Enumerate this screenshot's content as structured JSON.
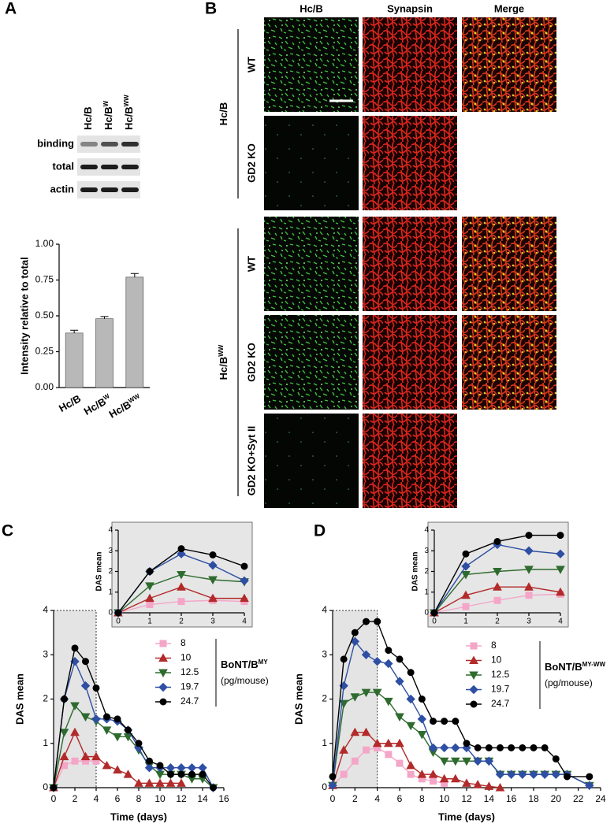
{
  "panel_labels": [
    "A",
    "B",
    "C",
    "D"
  ],
  "blot": {
    "lanes": [
      [
        "Hc/B"
      ],
      [
        "Hc/B",
        "W"
      ],
      [
        "Hc/B",
        "WW"
      ]
    ],
    "rows": [
      "binding",
      "total",
      "actin"
    ]
  },
  "panel_b": {
    "columns": [
      "Hc/B",
      "Synapsin",
      "Merge"
    ],
    "groups": [
      {
        "label": [
          "Hc/B"
        ],
        "rows": [
          "WT",
          "GD2 KO"
        ]
      },
      {
        "label": [
          "Hc/B",
          "WW"
        ],
        "rows": [
          "WT",
          "GD2 KO",
          "GD2 KO+Syt II"
        ]
      }
    ]
  },
  "chart_data": [
    {
      "type": "bar",
      "categories": [
        [
          "Hc/B"
        ],
        [
          "Hc/B",
          "W"
        ],
        [
          "Hc/B",
          "WW"
        ]
      ],
      "values": [
        0.38,
        0.48,
        0.77
      ],
      "errors": [
        0.02,
        0.015,
        0.025
      ],
      "color": "#b8b8b8",
      "y_label": "Intensity relative to total",
      "ylim": [
        0,
        1
      ],
      "yticks": [
        {
          "value": 0,
          "label": "0.00"
        },
        {
          "value": 0.25,
          "label": "0.25"
        },
        {
          "value": 0.5,
          "label": "0.50"
        },
        {
          "value": 0.75,
          "label": "0.75"
        },
        {
          "value": 1,
          "label": "1.00"
        }
      ]
    },
    {
      "type": "line",
      "x_label": "Time (days)",
      "y_label": "DAS mean",
      "x": [
        0,
        1,
        2,
        3,
        4,
        5,
        6,
        7,
        8,
        9,
        10,
        11,
        12,
        13,
        14,
        15
      ],
      "xlim": [
        0,
        16
      ],
      "xticks": [
        0,
        2,
        4,
        6,
        8,
        10,
        12,
        14,
        16
      ],
      "ylim": [
        0,
        4
      ],
      "yticks": [
        0,
        1,
        2,
        3,
        4
      ],
      "shade_x": [
        0,
        4
      ],
      "legend_title": [
        "BoNT/B",
        "MY"
      ],
      "legend_unit": "(pg/mouse)",
      "series": [
        {
          "name": "8",
          "color": "#f4a6c8",
          "marker": "square",
          "values": [
            0,
            0.5,
            0.6,
            0.6,
            0.6,
            null,
            null,
            null,
            null,
            null,
            null,
            null,
            null,
            null,
            null,
            null
          ]
        },
        {
          "name": "10",
          "color": "#b22a2a",
          "marker": "triangle-up",
          "values": [
            0,
            0.7,
            1.25,
            0.7,
            0.7,
            0.5,
            0.4,
            0.3,
            0.1,
            0.1,
            0.1,
            0.1,
            0.1,
            null,
            null,
            null
          ]
        },
        {
          "name": "12.5",
          "color": "#2e6b2e",
          "marker": "triangle-down",
          "values": [
            0,
            1.25,
            1.85,
            1.6,
            1.5,
            1.3,
            1.15,
            1.15,
            0.85,
            0.5,
            0.3,
            0.3,
            0.3,
            0.2,
            0.2,
            0
          ]
        },
        {
          "name": "19.7",
          "color": "#2e4fa3",
          "marker": "diamond",
          "values": [
            0,
            2.0,
            2.85,
            2.3,
            1.55,
            1.55,
            1.5,
            1.3,
            0.9,
            0.45,
            0.45,
            0.45,
            0.45,
            0.45,
            0.45,
            0
          ]
        },
        {
          "name": "24.7",
          "color": "#000000",
          "marker": "circle",
          "values": [
            0,
            2.0,
            3.15,
            2.85,
            2.25,
            1.6,
            1.55,
            1.3,
            1.0,
            0.6,
            0.5,
            0.3,
            0.3,
            0.3,
            0.3,
            0
          ]
        }
      ]
    },
    {
      "type": "line",
      "y_label": "DAS mean",
      "x": [
        0,
        1,
        2,
        3,
        4
      ],
      "xlim": [
        0,
        4
      ],
      "xticks": [
        0,
        1,
        2,
        3,
        4
      ],
      "ylim": [
        0,
        4
      ],
      "yticks": [
        0,
        1,
        2,
        3,
        4
      ],
      "series": [
        {
          "color": "#f4a6c8",
          "values": [
            0,
            0.4,
            0.55,
            0.6,
            0.55
          ]
        },
        {
          "color": "#b22a2a",
          "values": [
            0,
            0.7,
            1.25,
            0.7,
            0.7
          ]
        },
        {
          "color": "#2e6b2e",
          "values": [
            0,
            1.3,
            1.85,
            1.6,
            1.5
          ]
        },
        {
          "color": "#2e4fa3",
          "values": [
            0,
            2.0,
            2.85,
            2.3,
            1.55
          ]
        },
        {
          "color": "#000000",
          "values": [
            0,
            2.0,
            3.1,
            2.8,
            2.25
          ]
        }
      ]
    },
    {
      "type": "line",
      "x_label": "Time (days)",
      "y_label": "DAS mean",
      "x": [
        0,
        1,
        2,
        3,
        4,
        5,
        6,
        7,
        8,
        9,
        10,
        11,
        12,
        13,
        14,
        15,
        16,
        17,
        18,
        19,
        20,
        21,
        23
      ],
      "xlim": [
        0,
        24
      ],
      "xticks": [
        0,
        2,
        4,
        6,
        8,
        10,
        12,
        14,
        16,
        18,
        20,
        22,
        24
      ],
      "ylim": [
        0,
        4
      ],
      "yticks": [
        0,
        1,
        2,
        3,
        4
      ],
      "shade_x": [
        0,
        4
      ],
      "legend_title": [
        "BoNT/B",
        "MY-WW"
      ],
      "legend_unit": "(pg/mouse)",
      "series": [
        {
          "name": "8",
          "color": "#f4a6c8",
          "marker": "square",
          "values": [
            0.05,
            0.3,
            0.6,
            0.85,
            0.9,
            0.75,
            0.55,
            0.3,
            0.2,
            0.15,
            0.1,
            null,
            null,
            null,
            null,
            null,
            null,
            null,
            null,
            null,
            null,
            null,
            null
          ]
        },
        {
          "name": "10",
          "color": "#b22a2a",
          "marker": "triangle-up",
          "values": [
            0.05,
            0.85,
            1.25,
            1.25,
            1.0,
            1.0,
            1.0,
            0.5,
            0.3,
            0.3,
            0.2,
            0.2,
            0.1,
            0.07,
            0.03,
            0,
            null,
            null,
            null,
            null,
            null,
            null,
            null
          ]
        },
        {
          "name": "12.5",
          "color": "#2e6b2e",
          "marker": "triangle-down",
          "values": [
            0.05,
            1.9,
            2.05,
            2.15,
            2.15,
            1.95,
            1.6,
            1.4,
            1.2,
            0.8,
            0.6,
            0.6,
            0.6,
            0.6,
            0.6,
            0.3,
            0.3,
            0.3,
            0.3,
            0.3,
            0.3,
            0.3,
            0.05
          ]
        },
        {
          "name": "19.7",
          "color": "#2e4fa3",
          "marker": "diamond",
          "values": [
            0.05,
            2.3,
            3.3,
            3.0,
            2.85,
            2.8,
            2.4,
            2.0,
            1.55,
            0.9,
            0.9,
            0.9,
            0.9,
            0.6,
            0.6,
            0.3,
            0.3,
            0.3,
            0.3,
            0.3,
            0.3,
            0.3,
            0.05
          ]
        },
        {
          "name": "24.7",
          "color": "#000000",
          "marker": "circle",
          "values": [
            0.25,
            2.9,
            3.5,
            3.75,
            3.75,
            3.1,
            2.9,
            2.6,
            2.0,
            1.5,
            1.5,
            1.5,
            1.0,
            0.9,
            0.9,
            0.9,
            0.9,
            0.9,
            0.9,
            0.9,
            0.65,
            0.25,
            0.25
          ]
        }
      ]
    },
    {
      "type": "line",
      "y_label": "DAS mean",
      "x": [
        0,
        1,
        2,
        3,
        4
      ],
      "xlim": [
        0,
        4
      ],
      "xticks": [
        0,
        1,
        2,
        3,
        4
      ],
      "ylim": [
        0,
        4
      ],
      "yticks": [
        0,
        1,
        2,
        3,
        4
      ],
      "series": [
        {
          "color": "#f4a6c8",
          "values": [
            0,
            0.3,
            0.6,
            0.85,
            0.9
          ]
        },
        {
          "color": "#b22a2a",
          "values": [
            0,
            0.85,
            1.25,
            1.25,
            1.0
          ]
        },
        {
          "color": "#2e6b2e",
          "values": [
            0,
            1.85,
            2.0,
            2.1,
            2.1
          ]
        },
        {
          "color": "#2e4fa3",
          "values": [
            0,
            2.25,
            3.3,
            3.0,
            2.85
          ]
        },
        {
          "color": "#000000",
          "values": [
            0,
            2.85,
            3.45,
            3.75,
            3.75
          ]
        }
      ]
    }
  ]
}
